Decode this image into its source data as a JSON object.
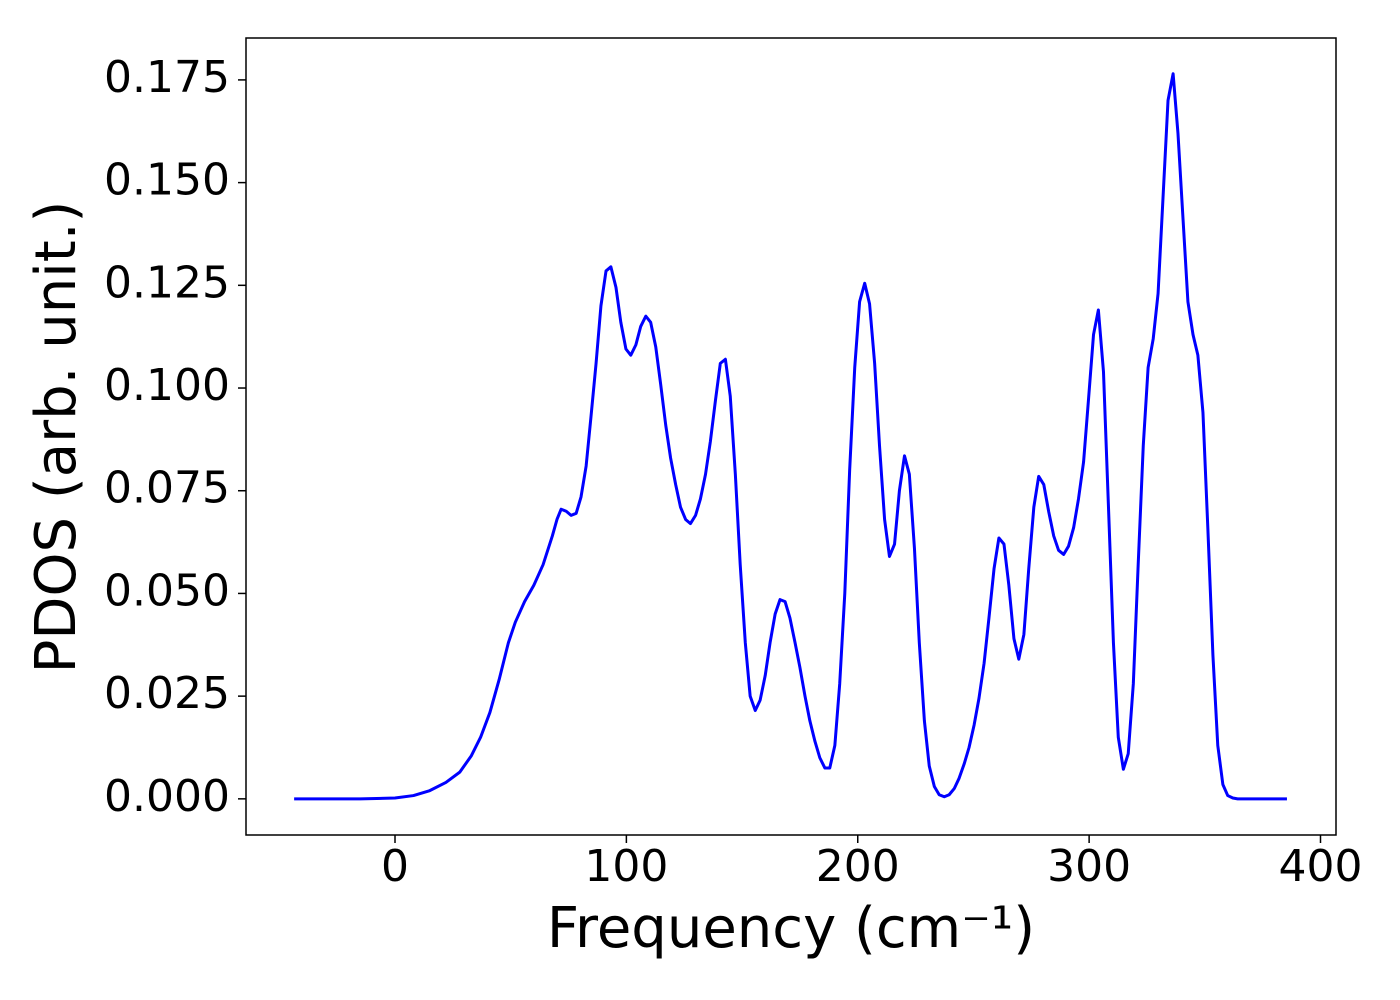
{
  "chart_data": {
    "type": "line",
    "xlabel": "Frequency (cm⁻¹)",
    "ylabel": "PDOS (arb. unit.)",
    "xlim": [
      -64.4,
      406.7
    ],
    "ylim": [
      -0.0088,
      0.1852
    ],
    "xticks": [
      0,
      100,
      200,
      300,
      400
    ],
    "yticks": [
      {
        "value": 0,
        "label": "0.000"
      },
      {
        "value": 0.025,
        "label": "0.025"
      },
      {
        "value": 0.05,
        "label": "0.050"
      },
      {
        "value": 0.075,
        "label": "0.075"
      },
      {
        "value": 0.1,
        "label": "0.100"
      },
      {
        "value": 0.125,
        "label": "0.125"
      },
      {
        "value": 0.15,
        "label": "0.150"
      },
      {
        "value": 0.175,
        "label": "0.175"
      }
    ],
    "grid": false,
    "series": [
      {
        "color": "#0000ff",
        "x": [
          -43.6,
          -30,
          -15,
          0,
          8,
          15,
          22,
          28,
          33,
          37,
          41,
          45,
          49,
          52,
          56,
          60,
          64,
          68,
          70,
          71.8,
          74.0,
          76.1,
          78.3,
          80.4,
          82.6,
          84.7,
          86.9,
          89.0,
          91.2,
          93.3,
          95.5,
          97.6,
          99.8,
          101.9,
          104.1,
          106.2,
          108.4,
          110.5,
          112.7,
          114.8,
          117.0,
          119.1,
          121.3,
          123.4,
          125.6,
          127.7,
          129.9,
          132.0,
          134.2,
          136.3,
          138.5,
          140.6,
          142.8,
          144.9,
          147.1,
          149.2,
          151.4,
          153.5,
          155.7,
          157.8,
          160.0,
          162.1,
          164.3,
          166.4,
          168.6,
          170.7,
          172.9,
          175.0,
          177.2,
          179.3,
          181.5,
          183.6,
          185.8,
          187.9,
          190.1,
          192.2,
          194.4,
          196.5,
          198.7,
          200.8,
          203.0,
          205.1,
          207.3,
          209.4,
          211.6,
          213.7,
          215.9,
          218.0,
          220.2,
          222.3,
          224.5,
          226.6,
          228.8,
          230.9,
          233.1,
          235.2,
          237.4,
          239.5,
          241.7,
          243.8,
          246.0,
          248.1,
          250.3,
          252.4,
          254.6,
          256.7,
          258.9,
          261.0,
          263.2,
          265.3,
          267.5,
          269.6,
          271.8,
          273.9,
          276.1,
          278.2,
          280.4,
          282.5,
          284.7,
          286.8,
          289.0,
          291.1,
          293.3,
          295.4,
          297.6,
          299.7,
          301.9,
          304.0,
          306.2,
          308.3,
          310.5,
          312.6,
          314.8,
          316.9,
          319.1,
          321.2,
          323.4,
          325.5,
          327.7,
          329.8,
          332.0,
          334.1,
          336.3,
          338.4,
          340.6,
          342.7,
          344.9,
          347.0,
          349.2,
          351.3,
          353.5,
          355.6,
          357.8,
          359.9,
          362.1,
          364.2,
          385.5
        ],
        "values": [
          0,
          0,
          0,
          0.0002,
          0.0008,
          0.002,
          0.004,
          0.0065,
          0.0105,
          0.015,
          0.021,
          0.029,
          0.038,
          0.043,
          0.048,
          0.052,
          0.057,
          0.064,
          0.068,
          0.0705,
          0.07,
          0.069,
          0.0695,
          0.0735,
          0.081,
          0.093,
          0.106,
          0.12,
          0.1285,
          0.1295,
          0.1245,
          0.116,
          0.1095,
          0.108,
          0.1105,
          0.115,
          0.1175,
          0.116,
          0.11,
          0.101,
          0.091,
          0.083,
          0.0765,
          0.071,
          0.068,
          0.067,
          0.069,
          0.073,
          0.079,
          0.087,
          0.097,
          0.106,
          0.107,
          0.098,
          0.079,
          0.057,
          0.038,
          0.025,
          0.0215,
          0.024,
          0.03,
          0.038,
          0.045,
          0.0485,
          0.048,
          0.044,
          0.038,
          0.032,
          0.025,
          0.019,
          0.014,
          0.01,
          0.0075,
          0.0075,
          0.013,
          0.028,
          0.05,
          0.08,
          0.105,
          0.121,
          0.1255,
          0.1205,
          0.106,
          0.086,
          0.068,
          0.059,
          0.062,
          0.075,
          0.0835,
          0.079,
          0.061,
          0.038,
          0.019,
          0.008,
          0.003,
          0.001,
          0.0005,
          0.001,
          0.0025,
          0.005,
          0.0085,
          0.0125,
          0.018,
          0.0245,
          0.033,
          0.044,
          0.056,
          0.0635,
          0.062,
          0.052,
          0.039,
          0.034,
          0.04,
          0.056,
          0.071,
          0.0785,
          0.0765,
          0.07,
          0.064,
          0.0605,
          0.0595,
          0.0615,
          0.066,
          0.073,
          0.082,
          0.097,
          0.113,
          0.119,
          0.104,
          0.072,
          0.038,
          0.015,
          0.0072,
          0.011,
          0.028,
          0.057,
          0.086,
          0.105,
          0.112,
          0.123,
          0.147,
          0.17,
          0.1765,
          0.162,
          0.141,
          0.121,
          0.113,
          0.108,
          0.094,
          0.066,
          0.035,
          0.013,
          0.0035,
          0.0008,
          0.0002,
          0,
          0
        ]
      }
    ]
  }
}
